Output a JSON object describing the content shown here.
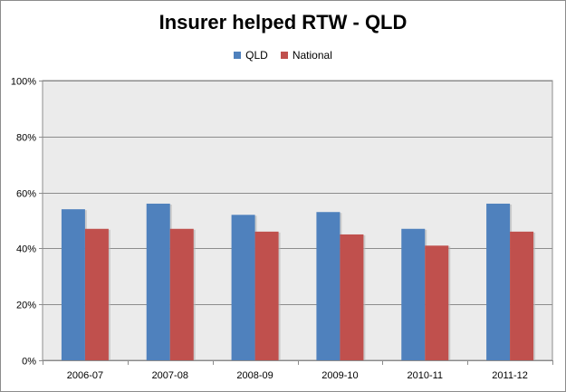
{
  "chart_data": {
    "type": "bar",
    "title": "Insurer helped RTW - QLD",
    "categories": [
      "2006-07",
      "2007-08",
      "2008-09",
      "2009-10",
      "2010-11",
      "2011-12"
    ],
    "series": [
      {
        "name": "QLD",
        "color": "#4f81bd",
        "values": [
          54,
          56,
          52,
          53,
          47,
          56
        ]
      },
      {
        "name": "National",
        "color": "#c0504d",
        "values": [
          47,
          47,
          46,
          45,
          41,
          46
        ]
      }
    ],
    "ylim": [
      0,
      100
    ],
    "yticks": [
      0,
      20,
      40,
      60,
      80,
      100
    ],
    "ytick_labels": [
      "0%",
      "20%",
      "40%",
      "60%",
      "80%",
      "100%"
    ],
    "grid": true,
    "legend_position": "top-center",
    "plot_background": "#ebebeb"
  }
}
